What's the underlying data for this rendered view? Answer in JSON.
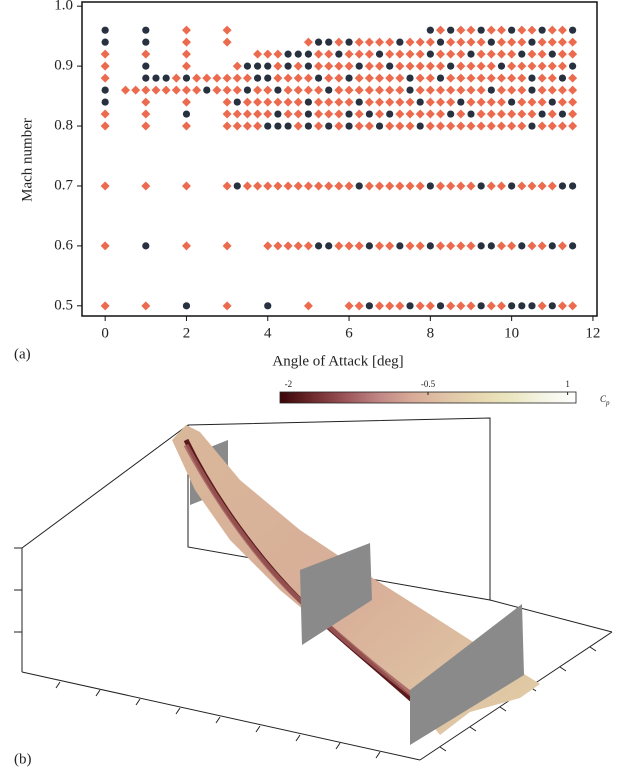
{
  "chart_data": [
    {
      "type": "scatter",
      "panel_label": "(a)",
      "x_label": "Angle of Attack [deg]",
      "y_label": "Mach number",
      "xlim": [
        -0.57,
        12.1
      ],
      "xticks": [
        0,
        2,
        4,
        6,
        8,
        10,
        12
      ],
      "ylim": [
        0.483,
        1.007
      ],
      "yticks": [
        0.5,
        0.6,
        0.7,
        0.8,
        0.9,
        {
          "value": 1,
          "label": "1.0"
        }
      ],
      "series": [
        {
          "color": "#ec6b4f",
          "marker": "diamond",
          "x": [
            0,
            1,
            3,
            5,
            6,
            6.25,
            6.75,
            7,
            7.25,
            7.75,
            8,
            8.5,
            8.75,
            9,
            9.5,
            9.75,
            10.75,
            11.25,
            11.5,
            0,
            2,
            3,
            4,
            4.25,
            4.5,
            4.75,
            5,
            5.75,
            6,
            6.25,
            6.75,
            7,
            7.5,
            7.75,
            8.25,
            8.5,
            8.75,
            9,
            9.75,
            10,
            10.5,
            10.75,
            11.25,
            0,
            1,
            2,
            3,
            3.5,
            3.75,
            4,
            4.25,
            4.5,
            4.75,
            5,
            5.25,
            5.5,
            5.75,
            6,
            6.5,
            6.75,
            7,
            7.25,
            7.5,
            7.75,
            8.25,
            8.5,
            8.75,
            9,
            9.5,
            9.75,
            10.25,
            10.5,
            10.75,
            11,
            0,
            1,
            2,
            3,
            3.25,
            3.5,
            3.75,
            4.75,
            5.25,
            5.75,
            6.25,
            6.5,
            7,
            7.25,
            7.5,
            8,
            8.25,
            8.5,
            8.75,
            9,
            9.25,
            9.5,
            9.75,
            10,
            10.25,
            10.75,
            11,
            11.25,
            11.5,
            0,
            1,
            3,
            3.25,
            3.5,
            3.75,
            4,
            4.5,
            4.75,
            5.25,
            5.5,
            5.75,
            6.25,
            6.75,
            7.25,
            7.5,
            7.75,
            8,
            8.25,
            8.75,
            9.25,
            9.5,
            9.75,
            10,
            10.25,
            10.5,
            11,
            11.5,
            1,
            2,
            3,
            3.5,
            3.75,
            4,
            4.25,
            4.5,
            4.75,
            5.25,
            5.5,
            5.75,
            6,
            6.5,
            6.75,
            7,
            7.25,
            7.5,
            8,
            8.25,
            8.5,
            9,
            9.25,
            9.5,
            9.75,
            10.25,
            10.5,
            10.75,
            11.25,
            11.5,
            0.5,
            0.75,
            1,
            1.25,
            1.5,
            1.75,
            2,
            2.25,
            2.75,
            3,
            3.25,
            3.75,
            4,
            4.5,
            4.75,
            5,
            5.25,
            5.75,
            6,
            6.25,
            6.5,
            6.75,
            7,
            7.25,
            7.75,
            8,
            8.25,
            8.5,
            8.75,
            9,
            9.25,
            9.75,
            10,
            10.25,
            10.75,
            11,
            11.25,
            11.5,
            0,
            1.75,
            2.25,
            2.5,
            2.75,
            3,
            3.25,
            3.5,
            4.25,
            4.5,
            4.75,
            5,
            5.5,
            5.75,
            6.25,
            6.5,
            6.75,
            7,
            7.25,
            7.75,
            8,
            8.5,
            8.75,
            9,
            9.25,
            9.5,
            9.75,
            10,
            10.25,
            10.75,
            11,
            11.5,
            0,
            2,
            3.25,
            4.25,
            4.75,
            5.25,
            5.5,
            5.75,
            6,
            6.5,
            6.75,
            7.25,
            7.5,
            7.75,
            8,
            8.25,
            8.75,
            9,
            9.25,
            9.5,
            10,
            10.25,
            10.5,
            10.75,
            11,
            11.25,
            0,
            1,
            2,
            3.75,
            4,
            4.25,
            5.25,
            5.5,
            6,
            6.25,
            6.5,
            7,
            7.25,
            7.5,
            7.75,
            8.25,
            8.5,
            8.75,
            9.25,
            9.5,
            9.75,
            10,
            10.5,
            10.75,
            11.25,
            11.5,
            2,
            3,
            5,
            5.75,
            6.25,
            6.5,
            6.75,
            7,
            7.5,
            7.75,
            8,
            8.5,
            8.75,
            9,
            9.25,
            9.75,
            10,
            10.25,
            10.75,
            11,
            11.25,
            11.5,
            2,
            3,
            8.25,
            8.75,
            9,
            9.5,
            9.75,
            10.25,
            10.5,
            11,
            11.25
          ],
          "values": [
            0.5,
            0.5,
            0.5,
            0.5,
            0.5,
            0.5,
            0.5,
            0.5,
            0.5,
            0.5,
            0.5,
            0.5,
            0.5,
            0.5,
            0.5,
            0.5,
            0.5,
            0.5,
            0.5,
            0.6,
            0.6,
            0.6,
            0.6,
            0.6,
            0.6,
            0.6,
            0.6,
            0.6,
            0.6,
            0.6,
            0.6,
            0.6,
            0.6,
            0.6,
            0.6,
            0.6,
            0.6,
            0.6,
            0.6,
            0.6,
            0.6,
            0.6,
            0.6,
            0.7,
            0.7,
            0.7,
            0.7,
            0.7,
            0.7,
            0.7,
            0.7,
            0.7,
            0.7,
            0.7,
            0.7,
            0.7,
            0.7,
            0.7,
            0.7,
            0.7,
            0.7,
            0.7,
            0.7,
            0.7,
            0.7,
            0.7,
            0.7,
            0.7,
            0.7,
            0.7,
            0.7,
            0.7,
            0.7,
            0.7,
            0.8,
            0.8,
            0.8,
            0.8,
            0.8,
            0.8,
            0.8,
            0.8,
            0.8,
            0.8,
            0.8,
            0.8,
            0.8,
            0.8,
            0.8,
            0.8,
            0.8,
            0.8,
            0.8,
            0.8,
            0.8,
            0.8,
            0.8,
            0.8,
            0.8,
            0.8,
            0.8,
            0.8,
            0.8,
            0.82,
            0.82,
            0.82,
            0.82,
            0.82,
            0.82,
            0.82,
            0.82,
            0.82,
            0.82,
            0.82,
            0.82,
            0.82,
            0.82,
            0.82,
            0.82,
            0.82,
            0.82,
            0.82,
            0.82,
            0.82,
            0.82,
            0.82,
            0.82,
            0.82,
            0.82,
            0.82,
            0.82,
            0.84,
            0.84,
            0.84,
            0.84,
            0.84,
            0.84,
            0.84,
            0.84,
            0.84,
            0.84,
            0.84,
            0.84,
            0.84,
            0.84,
            0.84,
            0.84,
            0.84,
            0.84,
            0.84,
            0.84,
            0.84,
            0.84,
            0.84,
            0.84,
            0.84,
            0.84,
            0.84,
            0.84,
            0.84,
            0.84,
            0.86,
            0.86,
            0.86,
            0.86,
            0.86,
            0.86,
            0.86,
            0.86,
            0.86,
            0.86,
            0.86,
            0.86,
            0.86,
            0.86,
            0.86,
            0.86,
            0.86,
            0.86,
            0.86,
            0.86,
            0.86,
            0.86,
            0.86,
            0.86,
            0.86,
            0.86,
            0.86,
            0.86,
            0.86,
            0.86,
            0.86,
            0.86,
            0.86,
            0.86,
            0.86,
            0.86,
            0.86,
            0.86,
            0.88,
            0.88,
            0.88,
            0.88,
            0.88,
            0.88,
            0.88,
            0.88,
            0.88,
            0.88,
            0.88,
            0.88,
            0.88,
            0.88,
            0.88,
            0.88,
            0.88,
            0.88,
            0.88,
            0.88,
            0.88,
            0.88,
            0.88,
            0.88,
            0.88,
            0.88,
            0.88,
            0.88,
            0.88,
            0.88,
            0.88,
            0.88,
            0.9,
            0.9,
            0.9,
            0.9,
            0.9,
            0.9,
            0.9,
            0.9,
            0.9,
            0.9,
            0.9,
            0.9,
            0.9,
            0.9,
            0.9,
            0.9,
            0.9,
            0.9,
            0.9,
            0.9,
            0.9,
            0.9,
            0.9,
            0.9,
            0.9,
            0.9,
            0.92,
            0.92,
            0.92,
            0.92,
            0.92,
            0.92,
            0.92,
            0.92,
            0.92,
            0.92,
            0.92,
            0.92,
            0.92,
            0.92,
            0.92,
            0.92,
            0.92,
            0.92,
            0.92,
            0.92,
            0.92,
            0.92,
            0.92,
            0.92,
            0.92,
            0.92,
            0.94,
            0.94,
            0.94,
            0.94,
            0.94,
            0.94,
            0.94,
            0.94,
            0.94,
            0.94,
            0.94,
            0.94,
            0.94,
            0.94,
            0.94,
            0.94,
            0.94,
            0.94,
            0.94,
            0.94,
            0.94,
            0.94,
            0.96,
            0.96,
            0.96,
            0.96,
            0.96,
            0.96,
            0.96,
            0.96,
            0.96,
            0.96,
            0.96
          ]
        },
        {
          "color": "#27313f",
          "marker": "circle",
          "x": [
            2,
            4,
            6.5,
            7.5,
            8.25,
            9.25,
            10,
            10.25,
            10.5,
            11,
            1,
            5.25,
            5.5,
            6.5,
            7.25,
            8,
            9.25,
            9.5,
            10.25,
            11,
            11.5,
            3.25,
            6.25,
            8,
            9.25,
            10,
            11.25,
            11.5,
            4,
            4.25,
            4.5,
            5,
            5.5,
            6,
            6.75,
            7.75,
            10.5,
            2,
            4.25,
            5,
            6,
            6.5,
            7,
            8.5,
            9,
            10.75,
            11.25,
            0,
            3.25,
            5,
            6.25,
            7.75,
            8.75,
            10,
            11,
            0,
            2.5,
            3.5,
            4.25,
            5.5,
            7.5,
            9.5,
            10.5,
            1,
            1.25,
            1.5,
            2,
            3.75,
            4,
            5.25,
            6,
            7.5,
            8.25,
            10.5,
            11.25,
            1,
            3.5,
            3.75,
            4,
            4.5,
            5,
            6.25,
            7,
            8.5,
            9.75,
            11.5,
            4.5,
            4.75,
            5,
            5.75,
            6.75,
            8,
            9,
            10.25,
            11,
            0,
            1,
            5.25,
            5.5,
            6,
            7.25,
            8.25,
            9.5,
            10.5,
            0,
            1,
            8,
            8.5,
            9.25,
            10,
            10.75,
            11.5
          ],
          "values": [
            0.5,
            0.5,
            0.5,
            0.5,
            0.5,
            0.5,
            0.5,
            0.5,
            0.5,
            0.5,
            0.6,
            0.6,
            0.6,
            0.6,
            0.6,
            0.6,
            0.6,
            0.6,
            0.6,
            0.6,
            0.6,
            0.7,
            0.7,
            0.7,
            0.7,
            0.7,
            0.7,
            0.7,
            0.8,
            0.8,
            0.8,
            0.8,
            0.8,
            0.8,
            0.8,
            0.8,
            0.8,
            0.82,
            0.82,
            0.82,
            0.82,
            0.82,
            0.82,
            0.82,
            0.82,
            0.82,
            0.82,
            0.84,
            0.84,
            0.84,
            0.84,
            0.84,
            0.84,
            0.84,
            0.84,
            0.86,
            0.86,
            0.86,
            0.86,
            0.86,
            0.86,
            0.86,
            0.86,
            0.88,
            0.88,
            0.88,
            0.88,
            0.88,
            0.88,
            0.88,
            0.88,
            0.88,
            0.88,
            0.88,
            0.88,
            0.9,
            0.9,
            0.9,
            0.9,
            0.9,
            0.9,
            0.9,
            0.9,
            0.9,
            0.9,
            0.9,
            0.92,
            0.92,
            0.92,
            0.92,
            0.92,
            0.92,
            0.92,
            0.92,
            0.92,
            0.94,
            0.94,
            0.94,
            0.94,
            0.94,
            0.94,
            0.94,
            0.94,
            0.94,
            0.96,
            0.96,
            0.96,
            0.96,
            0.96,
            0.96,
            0.96,
            0.96
          ]
        }
      ]
    },
    {
      "type": "surface",
      "panel_label": "(b)",
      "colorbar": {
        "label": "C",
        "label_subscript": "p",
        "lim": [
          -2.09,
          1.09
        ],
        "ticks": [
          -2,
          -0.5,
          1
        ],
        "colors": [
          "#3b0508",
          "#6e2a2c",
          "#9c5559",
          "#c08684",
          "#d7aa97",
          "#e0c3a6",
          "#e6d7b0",
          "#ebe6c0",
          "#f5f4e4",
          "#ffffff"
        ]
      }
    }
  ]
}
